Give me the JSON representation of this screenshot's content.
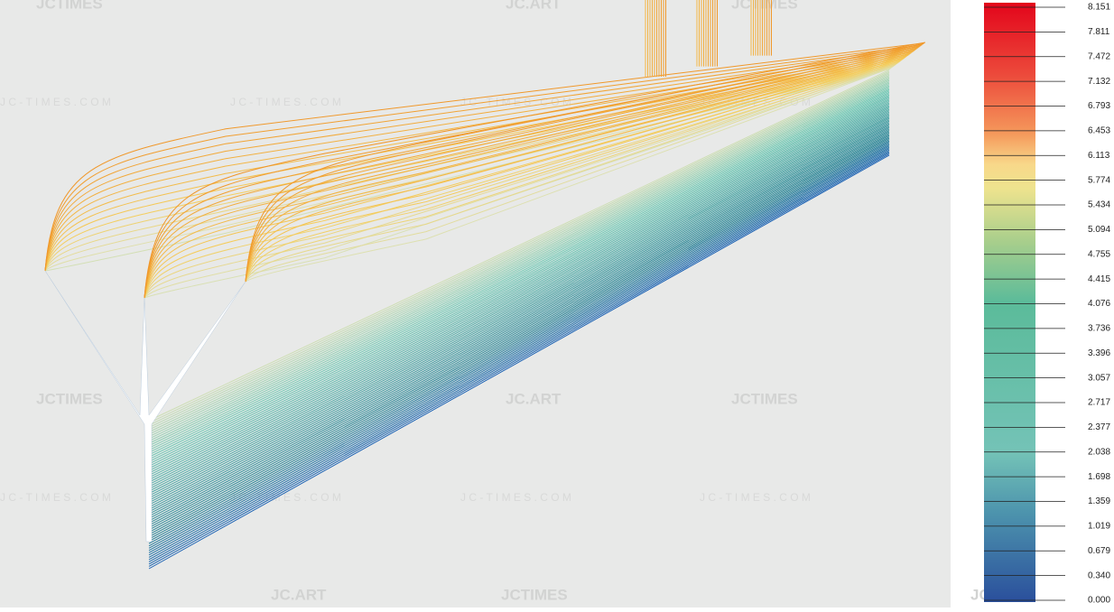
{
  "colorbar": {
    "labels": [
      "8.151",
      "7.811",
      "7.472",
      "7.132",
      "6.793",
      "6.453",
      "6.113",
      "5.774",
      "5.434",
      "5.094",
      "4.755",
      "4.415",
      "4.076",
      "3.736",
      "3.396",
      "3.057",
      "2.717",
      "2.377",
      "2.038",
      "1.698",
      "1.359",
      "1.019",
      "0.679",
      "0.340",
      "0.000"
    ]
  },
  "watermarks": [
    "JCTIMES",
    "JC.ART",
    "J C - T I M E S . C O M"
  ]
}
